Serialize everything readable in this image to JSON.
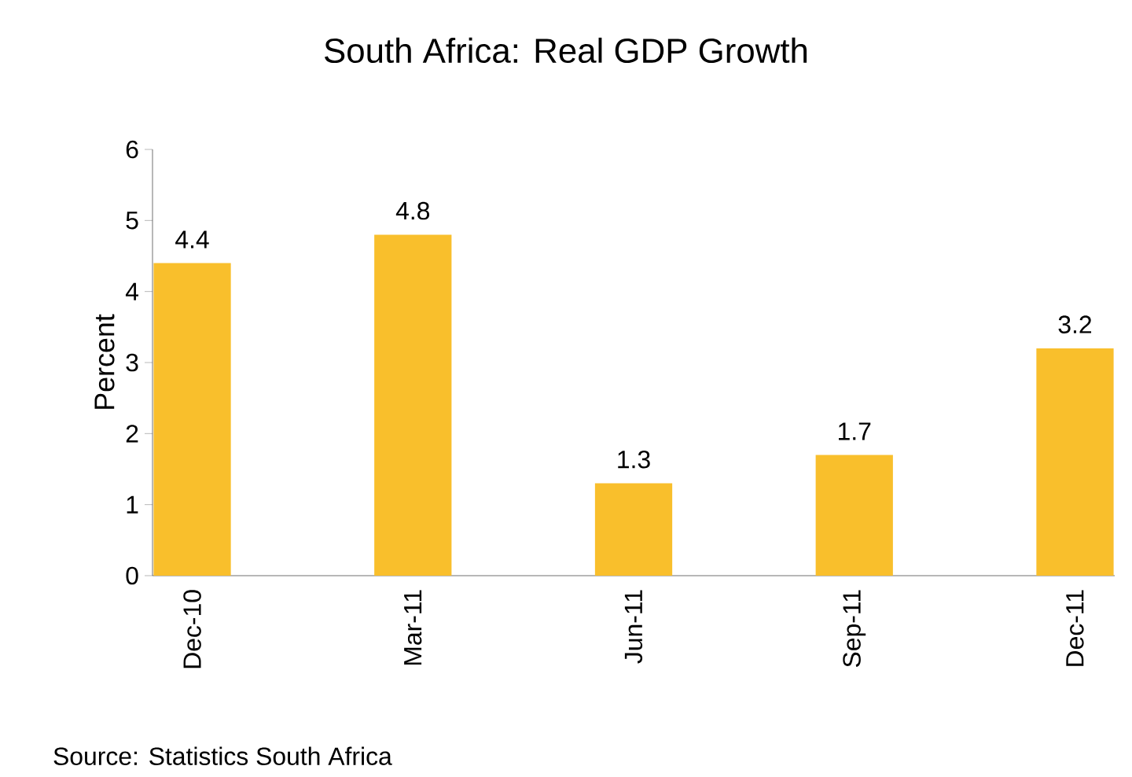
{
  "chart_data": {
    "type": "bar",
    "title": "South Africa: Real GDP Growth",
    "ylabel": "Percent",
    "categories": [
      "Dec-10",
      "Mar-11",
      "Jun-11",
      "Sep-11",
      "Dec-11"
    ],
    "values": [
      4.4,
      4.8,
      1.3,
      1.7,
      3.2
    ],
    "color": "#f9bf2c",
    "ylim": [
      0,
      6
    ],
    "yticks": [
      0,
      1,
      2,
      3,
      4,
      5,
      6
    ],
    "data_labels": true,
    "grid": false,
    "annotations": [
      "Source: Statistics South Africa"
    ]
  }
}
